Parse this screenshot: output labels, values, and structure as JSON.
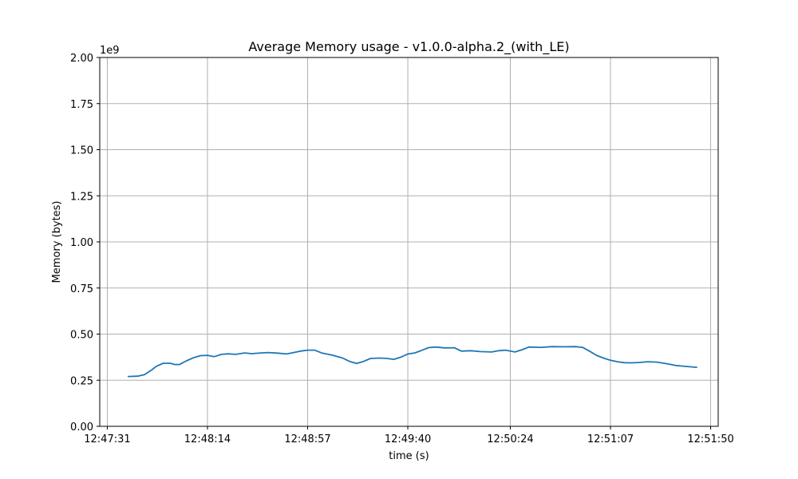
{
  "chart_data": {
    "type": "line",
    "title": "Average Memory usage  -  v1.0.0-alpha.2_(with_LE)",
    "xlabel": "time (s)",
    "ylabel": "Memory (bytes)",
    "y_offset_label": "1e9",
    "ylim": [
      0,
      2.0
    ],
    "y_ticks": [
      0.0,
      0.25,
      0.5,
      0.75,
      1.0,
      1.25,
      1.5,
      1.75,
      2.0
    ],
    "y_tick_labels": [
      "0.00",
      "0.25",
      "0.50",
      "0.75",
      "1.00",
      "1.25",
      "1.50",
      "1.75",
      "2.00"
    ],
    "xlim": [
      "12:47:31",
      "12:51:50"
    ],
    "x_ticks": [
      "12:47:31",
      "12:48:14",
      "12:48:57",
      "12:49:40",
      "12:50:24",
      "12:51:07",
      "12:51:50"
    ],
    "grid": true,
    "series": [
      {
        "color": "#1f77b4",
        "points": [
          [
            "12:47:40",
            0.27
          ],
          [
            "12:47:44",
            0.272
          ],
          [
            "12:47:47",
            0.28
          ],
          [
            "12:47:50",
            0.305
          ],
          [
            "12:47:52",
            0.325
          ],
          [
            "12:47:55",
            0.342
          ],
          [
            "12:47:58",
            0.342
          ],
          [
            "12:48:00",
            0.335
          ],
          [
            "12:48:02",
            0.335
          ],
          [
            "12:48:05",
            0.355
          ],
          [
            "12:48:08",
            0.372
          ],
          [
            "12:48:11",
            0.383
          ],
          [
            "12:48:14",
            0.385
          ],
          [
            "12:48:17",
            0.378
          ],
          [
            "12:48:20",
            0.39
          ],
          [
            "12:48:23",
            0.393
          ],
          [
            "12:48:26",
            0.39
          ],
          [
            "12:48:30",
            0.398
          ],
          [
            "12:48:33",
            0.394
          ],
          [
            "12:48:37",
            0.398
          ],
          [
            "12:48:40",
            0.4
          ],
          [
            "12:48:44",
            0.397
          ],
          [
            "12:48:48",
            0.392
          ],
          [
            "12:48:51",
            0.4
          ],
          [
            "12:48:54",
            0.408
          ],
          [
            "12:48:57",
            0.413
          ],
          [
            "12:49:00",
            0.413
          ],
          [
            "12:49:03",
            0.398
          ],
          [
            "12:49:08",
            0.385
          ],
          [
            "12:49:12",
            0.37
          ],
          [
            "12:49:15",
            0.352
          ],
          [
            "12:49:18",
            0.341
          ],
          [
            "12:49:21",
            0.352
          ],
          [
            "12:49:24",
            0.368
          ],
          [
            "12:49:28",
            0.37
          ],
          [
            "12:49:31",
            0.368
          ],
          [
            "12:49:34",
            0.363
          ],
          [
            "12:49:37",
            0.375
          ],
          [
            "12:49:40",
            0.392
          ],
          [
            "12:49:43",
            0.398
          ],
          [
            "12:49:46",
            0.412
          ],
          [
            "12:49:49",
            0.427
          ],
          [
            "12:49:52",
            0.43
          ],
          [
            "12:49:56",
            0.425
          ],
          [
            "12:50:00",
            0.426
          ],
          [
            "12:50:03",
            0.408
          ],
          [
            "12:50:07",
            0.41
          ],
          [
            "12:50:11",
            0.405
          ],
          [
            "12:50:16",
            0.403
          ],
          [
            "12:50:19",
            0.41
          ],
          [
            "12:50:22",
            0.413
          ],
          [
            "12:50:26",
            0.403
          ],
          [
            "12:50:29",
            0.415
          ],
          [
            "12:50:32",
            0.43
          ],
          [
            "12:50:37",
            0.428
          ],
          [
            "12:50:42",
            0.432
          ],
          [
            "12:50:47",
            0.431
          ],
          [
            "12:50:52",
            0.432
          ],
          [
            "12:50:55",
            0.428
          ],
          [
            "12:50:58",
            0.408
          ],
          [
            "12:51:01",
            0.385
          ],
          [
            "12:51:04",
            0.37
          ],
          [
            "12:51:07",
            0.358
          ],
          [
            "12:51:10",
            0.35
          ],
          [
            "12:51:13",
            0.345
          ],
          [
            "12:51:16",
            0.344
          ],
          [
            "12:51:19",
            0.346
          ],
          [
            "12:51:23",
            0.35
          ],
          [
            "12:51:27",
            0.348
          ],
          [
            "12:51:31",
            0.34
          ],
          [
            "12:51:35",
            0.33
          ],
          [
            "12:51:39",
            0.325
          ],
          [
            "12:51:44",
            0.32
          ]
        ]
      }
    ]
  }
}
